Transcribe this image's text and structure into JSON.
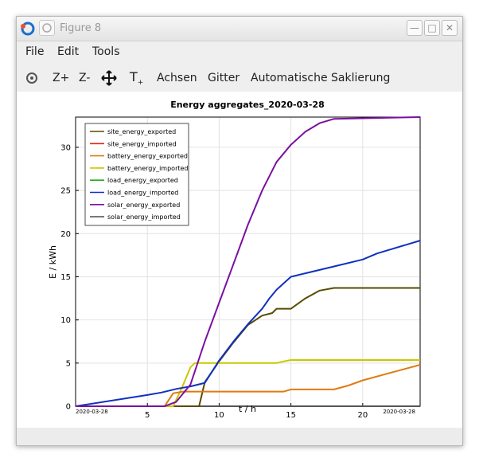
{
  "window": {
    "title": "Figure 8"
  },
  "menu": {
    "items": [
      "File",
      "Edit",
      "Tools"
    ]
  },
  "toolbar": {
    "zoom_in": "Z+",
    "zoom_out": "Z-",
    "text_tool": "T",
    "axes": "Achsen",
    "grid": "Gitter",
    "autoscale": "Automatische Saklierung"
  },
  "chart_data": {
    "type": "line",
    "title": "Energy aggregates_2020-03-28",
    "xlabel": "t / h",
    "ylabel": "E / kWh",
    "xlim": [
      0,
      24
    ],
    "ylim": [
      0,
      33.5
    ],
    "xticks": [
      5,
      10,
      15,
      20
    ],
    "yticks": [
      0,
      5,
      10,
      15,
      20,
      25,
      30
    ],
    "date_left": "2020-03-28",
    "date_right": "2020-03-28",
    "grid": true,
    "legend_position": "top-left",
    "series": [
      {
        "name": "site_energy_exported",
        "color": "#5a4a00",
        "points": [
          [
            0,
            0
          ],
          [
            8.6,
            0
          ],
          [
            9.0,
            2.8
          ],
          [
            10,
            5.2
          ],
          [
            11,
            7.4
          ],
          [
            12,
            9.4
          ],
          [
            13,
            10.5
          ],
          [
            13.7,
            10.8
          ],
          [
            14,
            11.3
          ],
          [
            15,
            11.3
          ],
          [
            16,
            12.5
          ],
          [
            17,
            13.4
          ],
          [
            18,
            13.7
          ],
          [
            24,
            13.7
          ]
        ]
      },
      {
        "name": "site_energy_imported",
        "color": "#e02020",
        "points": [
          [
            0,
            0
          ],
          [
            24,
            0
          ]
        ]
      },
      {
        "name": "battery_energy_exported",
        "color": "#e07a10",
        "points": [
          [
            0,
            0
          ],
          [
            6.2,
            0
          ],
          [
            6.8,
            1.5
          ],
          [
            7.5,
            1.7
          ],
          [
            14.5,
            1.7
          ],
          [
            15,
            1.95
          ],
          [
            18,
            1.95
          ],
          [
            19,
            2.4
          ],
          [
            20,
            3.0
          ],
          [
            22,
            3.9
          ],
          [
            24,
            4.8
          ]
        ]
      },
      {
        "name": "battery_energy_imported",
        "color": "#c8c800",
        "points": [
          [
            0,
            0
          ],
          [
            6.8,
            0
          ],
          [
            7.5,
            2.5
          ],
          [
            8.0,
            4.5
          ],
          [
            8.3,
            5.0
          ],
          [
            14,
            5.0
          ],
          [
            14.5,
            5.2
          ],
          [
            15,
            5.35
          ],
          [
            24,
            5.35
          ]
        ]
      },
      {
        "name": "load_energy_exported",
        "color": "#22aa22",
        "points": [
          [
            0,
            0
          ],
          [
            24,
            0
          ]
        ]
      },
      {
        "name": "load_energy_imported",
        "color": "#1030c0",
        "points": [
          [
            0,
            0
          ],
          [
            5,
            1.3
          ],
          [
            6,
            1.6
          ],
          [
            7,
            2.0
          ],
          [
            8,
            2.3
          ],
          [
            9,
            2.7
          ],
          [
            10,
            5.3
          ],
          [
            11,
            7.5
          ],
          [
            12,
            9.5
          ],
          [
            13,
            11.3
          ],
          [
            13.5,
            12.5
          ],
          [
            14,
            13.5
          ],
          [
            15,
            15.0
          ],
          [
            16,
            15.4
          ],
          [
            18,
            16.2
          ],
          [
            20,
            17.0
          ],
          [
            21,
            17.7
          ],
          [
            22,
            18.2
          ],
          [
            23,
            18.7
          ],
          [
            24,
            19.2
          ]
        ]
      },
      {
        "name": "solar_energy_exported",
        "color": "#7a10a0",
        "points": [
          [
            0,
            0
          ],
          [
            6.2,
            0
          ],
          [
            7,
            0.5
          ],
          [
            8,
            2.5
          ],
          [
            9,
            7.5
          ],
          [
            10,
            12.0
          ],
          [
            11,
            16.5
          ],
          [
            12,
            21.0
          ],
          [
            13,
            25.0
          ],
          [
            14,
            28.3
          ],
          [
            15,
            30.3
          ],
          [
            16,
            31.8
          ],
          [
            17,
            32.8
          ],
          [
            18,
            33.3
          ],
          [
            24,
            33.5
          ]
        ]
      },
      {
        "name": "solar_energy_imported",
        "color": "#555555",
        "points": [
          [
            0,
            0
          ],
          [
            24,
            0
          ]
        ]
      }
    ]
  }
}
